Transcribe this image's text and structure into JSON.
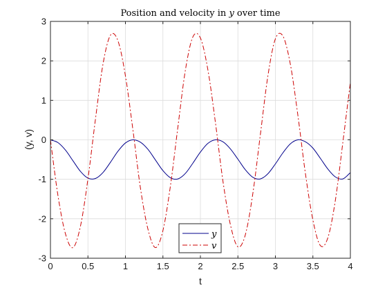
{
  "chart_data": {
    "type": "line",
    "title_main": "Position and velocity in ",
    "title_var": "y",
    "title_tail": " over time",
    "xlabel": "t",
    "ylabel": "(y, v)",
    "xlim": [
      0,
      4
    ],
    "ylim": [
      -3,
      3
    ],
    "xticks": [
      0,
      0.5,
      1,
      1.5,
      2,
      2.5,
      3,
      3.5,
      4
    ],
    "xtick_labels": [
      "0",
      "0.5",
      "1",
      "1.5",
      "2",
      "2.5",
      "3",
      "3.5",
      "4"
    ],
    "yticks": [
      -3,
      -2,
      -1,
      0,
      1,
      2,
      3
    ],
    "ytick_labels": [
      "-3",
      "-2",
      "-1",
      "0",
      "1",
      "2",
      "3"
    ],
    "grid": true,
    "legend_position": "bottom-center",
    "x": [
      0,
      0.1,
      0.2,
      0.3,
      0.4,
      0.5,
      0.6,
      0.7,
      0.8,
      0.9,
      1.0,
      1.1,
      1.2,
      1.3,
      1.4,
      1.5,
      1.6,
      1.7,
      1.8,
      1.9,
      2.0,
      2.1,
      2.2,
      2.3,
      2.4,
      2.5,
      2.6,
      2.7,
      2.8,
      2.9,
      3.0,
      3.1,
      3.2,
      3.3,
      3.4,
      3.5,
      3.6,
      3.7,
      3.8,
      3.9,
      4.0
    ],
    "series": [
      {
        "name": "y",
        "color": "#00008b",
        "dash": "solid",
        "values": [
          0,
          -0.07,
          -0.26,
          -0.53,
          -0.8,
          -0.97,
          -0.98,
          -0.83,
          -0.57,
          -0.29,
          -0.08,
          -0.0,
          -0.06,
          -0.24,
          -0.51,
          -0.78,
          -0.96,
          -0.99,
          -0.85,
          -0.59,
          -0.31,
          -0.09,
          -0.0,
          -0.05,
          -0.23,
          -0.49,
          -0.76,
          -0.95,
          -0.99,
          -0.86,
          -0.61,
          -0.33,
          -0.1,
          -0.0,
          -0.05,
          -0.21,
          -0.47,
          -0.74,
          -0.94,
          -0.99,
          -0.83
        ]
      },
      {
        "name": "v",
        "color": "#cc0000",
        "dash": "dashdot",
        "values": [
          0,
          -1.41,
          -2.38,
          -2.73,
          -2.19,
          -0.99,
          0.52,
          1.91,
          2.65,
          2.51,
          1.62,
          0.25,
          -1.22,
          -2.26,
          -2.73,
          -2.3,
          -1.17,
          0.33,
          1.77,
          2.61,
          2.58,
          1.77,
          0.44,
          -1.04,
          -2.15,
          -2.71,
          -2.4,
          -1.35,
          0.14,
          1.62,
          2.56,
          2.63,
          1.91,
          0.62,
          -0.85,
          -2.03,
          -2.68,
          -2.48,
          -1.53,
          -0.06,
          1.46
        ]
      }
    ]
  }
}
